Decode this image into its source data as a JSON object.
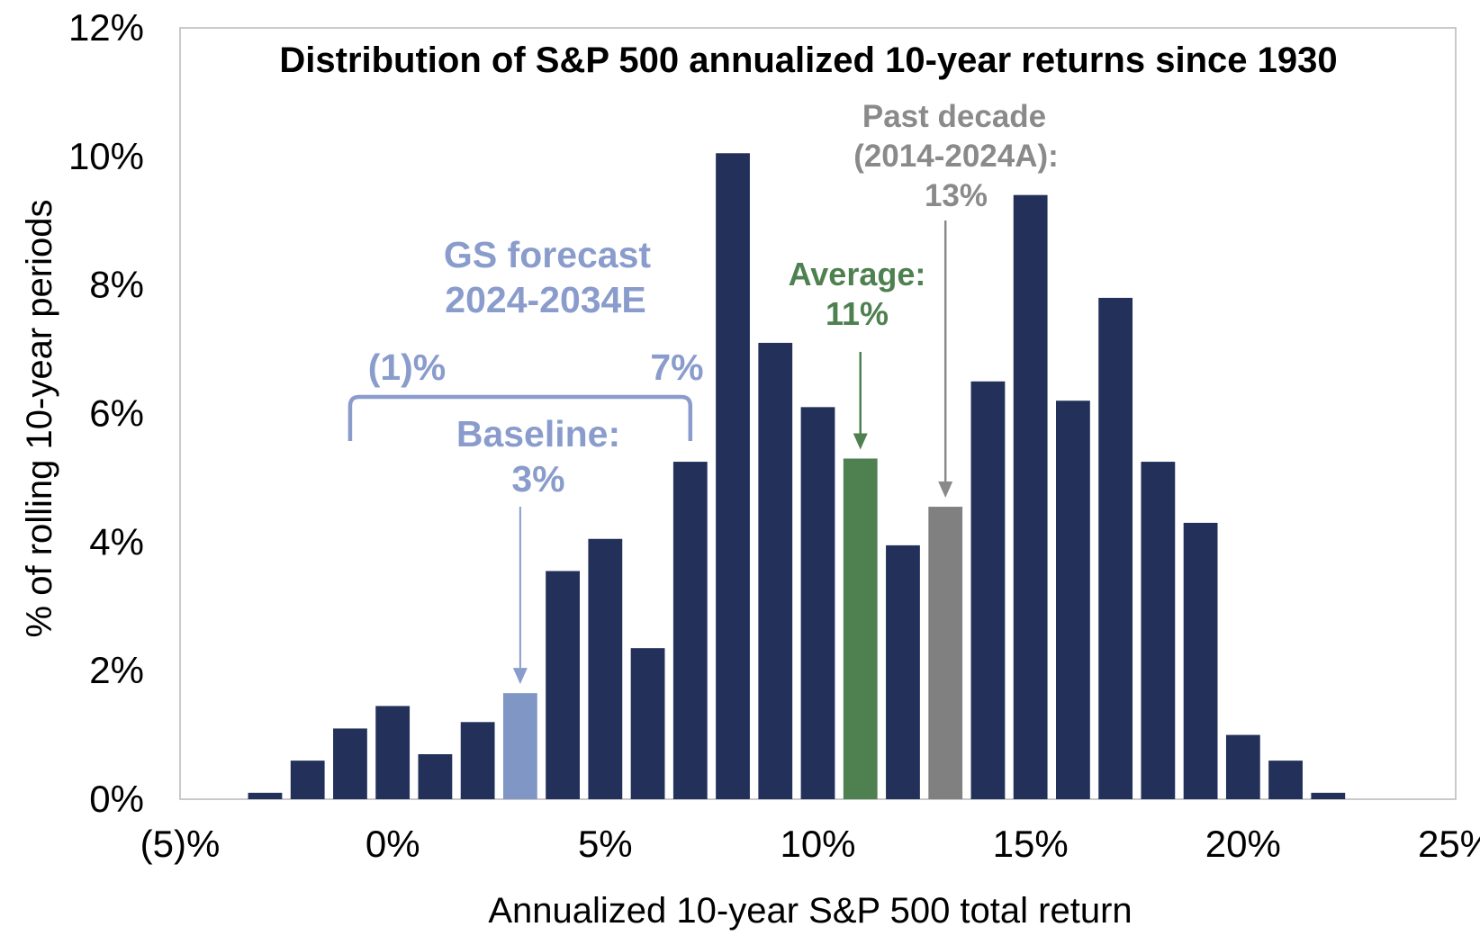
{
  "chart_data": {
    "type": "bar",
    "title": "Distribution of S&P 500 annualized 10-year returns since 1930",
    "xlabel": "Annualized  10-year S&P 500 total return",
    "ylabel": "% of rolling 10-year periods",
    "xlim": [
      -5,
      25
    ],
    "ylim": [
      0,
      12
    ],
    "x_ticks": [
      -5,
      0,
      5,
      10,
      15,
      20,
      25
    ],
    "x_tick_labels": [
      "(5)%",
      "0%",
      "5%",
      "10%",
      "15%",
      "20%",
      "25%"
    ],
    "y_ticks": [
      0,
      2,
      4,
      6,
      8,
      10,
      12
    ],
    "y_tick_labels": [
      "0%",
      "2%",
      "4%",
      "6%",
      "8%",
      "10%",
      "12%"
    ],
    "grid": false,
    "bar_width": 0.8,
    "series": [
      {
        "x": [
          -3,
          -2,
          -1,
          0,
          1,
          2,
          3,
          4,
          5,
          6,
          7,
          8,
          9,
          10,
          11,
          12,
          13,
          14,
          15,
          16,
          17,
          18,
          19,
          20,
          21,
          22
        ],
        "values": [
          0.1,
          0.6,
          1.1,
          1.45,
          0.7,
          1.2,
          1.65,
          3.55,
          4.05,
          2.35,
          5.25,
          10.05,
          7.1,
          6.1,
          5.3,
          3.95,
          4.55,
          6.5,
          9.4,
          6.2,
          7.8,
          5.25,
          4.3,
          1.0,
          0.6,
          0.1
        ],
        "highlight": {
          "3": "baseline",
          "11": "average",
          "13": "past"
        }
      }
    ],
    "colors": {
      "bar": "#22305a",
      "baseline": "#8096c4",
      "average": "#4e8050",
      "past": "#808080",
      "gs_text": "#8a9ccc",
      "average_text": "#4e8050",
      "past_text": "#8a8a8a"
    },
    "annotations": {
      "gs_forecast": {
        "line1": "GS forecast",
        "line2": "2024-2034E",
        "low_label": "(1)%",
        "high_label": "7%",
        "low_x": -1,
        "high_x": 7
      },
      "baseline": {
        "line1": "Baseline:",
        "line2": "3%",
        "x": 3
      },
      "average": {
        "line1": "Average:",
        "line2": "11%",
        "x": 11
      },
      "past_decade": {
        "line1": "Past decade",
        "line2": "(2014-2024A):",
        "line3": "13%",
        "x": 13
      }
    }
  }
}
